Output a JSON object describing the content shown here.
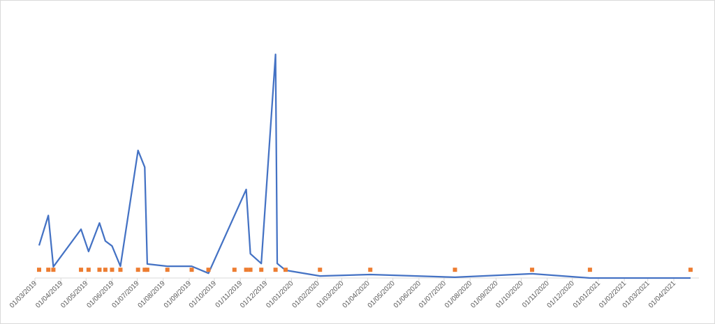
{
  "chart_data": {
    "type": "line",
    "xlim": [
      "01/03/2019",
      "01/05/2021"
    ],
    "ylim": [
      0,
      100
    ],
    "xticks": [
      "01/03/2019",
      "01/04/2019",
      "01/05/2019",
      "01/06/2019",
      "01/07/2019",
      "01/08/2019",
      "01/09/2019",
      "01/10/2019",
      "01/11/2019",
      "01/12/2019",
      "01/01/2020",
      "01/02/2020",
      "01/03/2020",
      "01/04/2020",
      "01/05/2020",
      "01/06/2020",
      "01/07/2020",
      "01/08/2020",
      "01/09/2020",
      "01/10/2020",
      "01/11/2020",
      "01/12/2020",
      "01/01/2021",
      "01/02/2021",
      "01/03/2021",
      "01/04/2021"
    ],
    "series": [
      {
        "type": "line",
        "color": "#4472c4",
        "x": [
          "06/03/2019",
          "17/03/2019",
          "23/03/2019",
          "25/04/2019",
          "04/05/2019",
          "17/05/2019",
          "24/05/2019",
          "01/06/2019",
          "11/06/2019",
          "02/07/2019",
          "10/07/2019",
          "13/07/2019",
          "06/08/2019",
          "04/09/2019",
          "24/09/2019",
          "08/11/2019",
          "13/11/2019",
          "26/11/2019",
          "13/12/2019",
          "15/12/2019",
          "25/12/2019",
          "04/02/2020",
          "04/04/2020",
          "14/07/2020",
          "14/10/2020",
          "22/12/2020",
          "21/04/2021"
        ],
        "values": [
          13,
          25,
          4.5,
          19.5,
          10.6,
          22,
          14.8,
          12.8,
          4.7,
          51,
          44.3,
          5.6,
          4.7,
          4.7,
          1.9,
          35.4,
          9.7,
          5.8,
          89.4,
          5.8,
          3.1,
          0.8,
          1.4,
          0.3,
          1.7,
          0,
          0
        ]
      },
      {
        "type": "scatter",
        "color": "#ed7d31",
        "x": [
          "06/03/2019",
          "17/03/2019",
          "23/03/2019",
          "25/04/2019",
          "04/05/2019",
          "17/05/2019",
          "24/05/2019",
          "01/06/2019",
          "11/06/2019",
          "02/07/2019",
          "10/07/2019",
          "13/07/2019",
          "06/08/2019",
          "04/09/2019",
          "24/09/2019",
          "25/10/2019",
          "08/11/2019",
          "13/11/2019",
          "26/11/2019",
          "13/12/2019",
          "25/12/2019",
          "04/02/2020",
          "04/04/2020",
          "14/07/2020",
          "14/10/2020",
          "22/12/2020",
          "21/04/2021"
        ],
        "values": [
          3.3,
          3.3,
          3.3,
          3.3,
          3.3,
          3.3,
          3.3,
          3.3,
          3.3,
          3.3,
          3.3,
          3.3,
          3.3,
          3.3,
          3.3,
          3.3,
          3.3,
          3.3,
          3.3,
          3.3,
          3.3,
          3.3,
          3.3,
          3.3,
          3.3,
          3.3,
          3.3
        ]
      }
    ]
  }
}
